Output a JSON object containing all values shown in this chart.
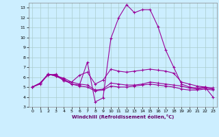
{
  "xlabel": "Windchill (Refroidissement éolien,°C)",
  "bg_color": "#cceeff",
  "grid_color": "#aacccc",
  "line_color": "#990099",
  "xlim": [
    -0.5,
    23.5
  ],
  "ylim": [
    3,
    13.5
  ],
  "yticks": [
    3,
    4,
    5,
    6,
    7,
    8,
    9,
    10,
    11,
    12,
    13
  ],
  "xticks": [
    0,
    1,
    2,
    3,
    4,
    5,
    6,
    7,
    8,
    9,
    10,
    11,
    12,
    13,
    14,
    15,
    16,
    17,
    18,
    19,
    20,
    21,
    22,
    23
  ],
  "series": [
    {
      "x": [
        0,
        1,
        2,
        3,
        4,
        5,
        6,
        7,
        8,
        9,
        10,
        11,
        12,
        13,
        14,
        15,
        16,
        17,
        18,
        19,
        20,
        21,
        22,
        23
      ],
      "y": [
        5.0,
        5.4,
        6.3,
        6.2,
        5.8,
        5.3,
        5.2,
        7.5,
        3.5,
        3.9,
        9.9,
        12.0,
        13.3,
        12.5,
        12.8,
        12.8,
        11.1,
        8.7,
        7.0,
        5.3,
        5.0,
        4.9,
        5.0,
        4.0
      ]
    },
    {
      "x": [
        0,
        1,
        2,
        3,
        4,
        5,
        6,
        7,
        8,
        9,
        10,
        11,
        12,
        13,
        14,
        15,
        16,
        17,
        18,
        19,
        20,
        21,
        22,
        23
      ],
      "y": [
        5.0,
        5.4,
        6.3,
        6.1,
        5.9,
        5.5,
        6.2,
        6.5,
        5.3,
        5.7,
        6.8,
        6.6,
        6.5,
        6.6,
        6.7,
        6.8,
        6.7,
        6.6,
        6.4,
        5.5,
        5.3,
        5.1,
        5.0,
        4.9
      ]
    },
    {
      "x": [
        0,
        1,
        2,
        3,
        4,
        5,
        6,
        7,
        8,
        9,
        10,
        11,
        12,
        13,
        14,
        15,
        16,
        17,
        18,
        19,
        20,
        21,
        22,
        23
      ],
      "y": [
        5.0,
        5.4,
        6.2,
        6.3,
        5.6,
        5.5,
        5.3,
        5.2,
        4.7,
        4.8,
        5.4,
        5.3,
        5.2,
        5.2,
        5.3,
        5.5,
        5.4,
        5.3,
        5.2,
        5.1,
        4.9,
        4.8,
        4.9,
        4.8
      ]
    },
    {
      "x": [
        0,
        1,
        2,
        3,
        4,
        5,
        6,
        7,
        8,
        9,
        10,
        11,
        12,
        13,
        14,
        15,
        16,
        17,
        18,
        19,
        20,
        21,
        22,
        23
      ],
      "y": [
        5.0,
        5.3,
        6.3,
        6.1,
        5.7,
        5.3,
        5.1,
        5.0,
        4.6,
        4.7,
        5.1,
        5.0,
        5.0,
        5.1,
        5.2,
        5.3,
        5.2,
        5.1,
        5.0,
        4.8,
        4.7,
        4.7,
        4.8,
        4.7
      ]
    }
  ]
}
